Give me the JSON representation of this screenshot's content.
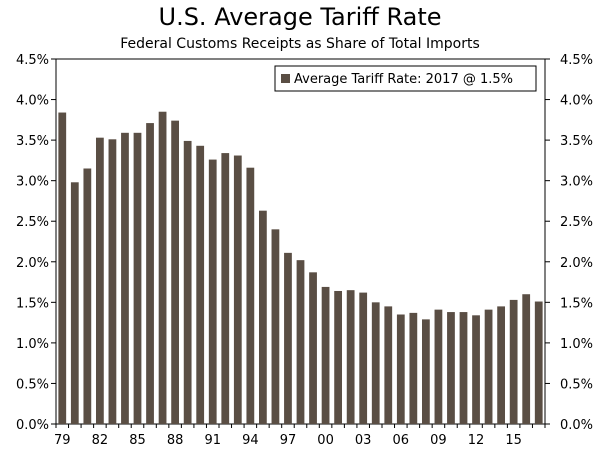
{
  "chart_data": {
    "type": "bar",
    "title": "U.S. Average Tariff Rate",
    "subtitle": "Federal Customs Receipts as Share of Total Imports",
    "xlabel": "",
    "ylabel": "",
    "ylim": [
      0,
      4.5
    ],
    "y_ticks": [
      "0.0%",
      "0.5%",
      "1.0%",
      "1.5%",
      "2.0%",
      "2.5%",
      "3.0%",
      "3.5%",
      "4.0%",
      "4.5%"
    ],
    "x_tick_labels": [
      "79",
      "82",
      "85",
      "88",
      "91",
      "94",
      "97",
      "00",
      "03",
      "06",
      "09",
      "12",
      "15"
    ],
    "categories": [
      "1979",
      "1980",
      "1981",
      "1982",
      "1983",
      "1984",
      "1985",
      "1986",
      "1987",
      "1988",
      "1989",
      "1990",
      "1991",
      "1992",
      "1993",
      "1994",
      "1995",
      "1996",
      "1997",
      "1998",
      "1999",
      "2000",
      "2001",
      "2002",
      "2003",
      "2004",
      "2005",
      "2006",
      "2007",
      "2008",
      "2009",
      "2010",
      "2011",
      "2012",
      "2013",
      "2014",
      "2015",
      "2016",
      "2017"
    ],
    "series": [
      {
        "name": "Average Tariff Rate: 2017 @ 1.5%",
        "color": "#5a4e44",
        "values": [
          3.84,
          2.98,
          3.15,
          3.53,
          3.51,
          3.59,
          3.59,
          3.71,
          3.85,
          3.74,
          3.49,
          3.43,
          3.26,
          3.34,
          3.31,
          3.16,
          2.63,
          2.4,
          2.11,
          2.02,
          1.87,
          1.69,
          1.64,
          1.65,
          1.62,
          1.5,
          1.45,
          1.35,
          1.37,
          1.29,
          1.41,
          1.38,
          1.38,
          1.34,
          1.41,
          1.45,
          1.53,
          1.6,
          1.51
        ]
      }
    ],
    "legend_position": "top-right",
    "grid": false
  }
}
